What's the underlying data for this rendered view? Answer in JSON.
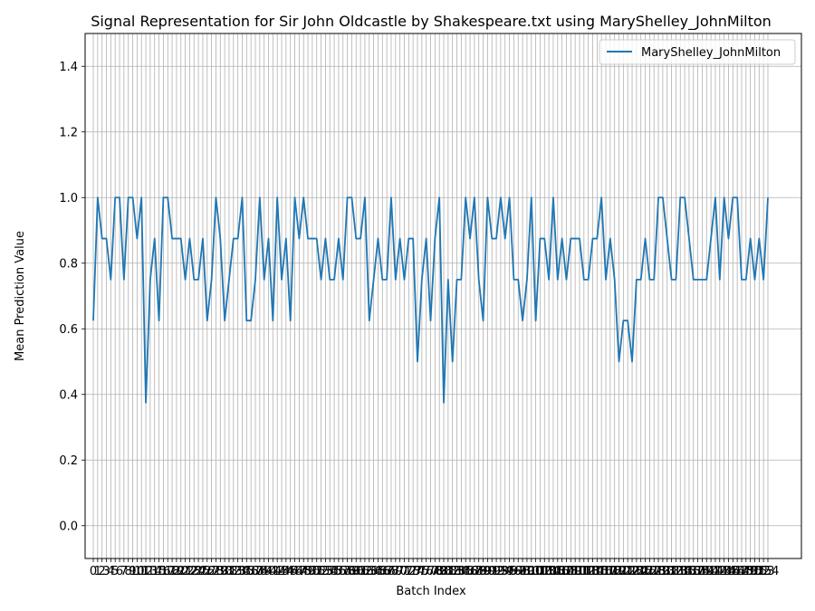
{
  "chart_data": {
    "type": "line",
    "title": "Signal Representation for Sir John Oldcastle by Shakespeare.txt using MaryShelley_JohnMilton",
    "xlabel": "Batch Index",
    "ylabel": "Mean Prediction Value",
    "ylim": [
      -0.1,
      1.5
    ],
    "y_ticks": [
      0.0,
      0.2,
      0.4,
      0.6,
      0.8,
      1.0,
      1.2,
      1.4
    ],
    "y_tick_labels": [
      "0.0",
      "0.2",
      "0.4",
      "0.6",
      "0.8",
      "1.0",
      "1.2",
      "1.4"
    ],
    "grid": true,
    "legend_position": "top-right",
    "series": [
      {
        "name": "MaryShelley_JohnMilton",
        "color": "#1f77b4",
        "values": [
          0.625,
          1.0,
          0.875,
          0.875,
          0.75,
          1.0,
          1.0,
          0.75,
          1.0,
          1.0,
          0.875,
          1.0,
          0.375,
          0.75,
          0.875,
          0.625,
          1.0,
          1.0,
          0.875,
          0.875,
          0.875,
          0.75,
          0.875,
          0.75,
          0.75,
          0.875,
          0.625,
          0.75,
          1.0,
          0.875,
          0.625,
          0.75,
          0.875,
          0.875,
          1.0,
          0.625,
          0.625,
          0.75,
          1.0,
          0.75,
          0.875,
          0.625,
          1.0,
          0.75,
          0.875,
          0.625,
          1.0,
          0.875,
          1.0,
          0.875,
          0.875,
          0.875,
          0.75,
          0.875,
          0.75,
          0.75,
          0.875,
          0.75,
          1.0,
          1.0,
          0.875,
          0.875,
          1.0,
          0.625,
          0.75,
          0.875,
          0.75,
          0.75,
          1.0,
          0.75,
          0.875,
          0.75,
          0.875,
          0.875,
          0.5,
          0.75,
          0.875,
          0.625,
          0.875,
          1.0,
          0.375,
          0.75,
          0.5,
          0.75,
          0.75,
          1.0,
          0.875,
          1.0,
          0.75,
          0.625,
          1.0,
          0.875,
          0.875,
          1.0,
          0.875,
          1.0,
          0.75,
          0.75,
          0.625,
          0.75,
          1.0,
          0.625,
          0.875,
          0.875,
          0.75,
          1.0,
          0.75,
          0.875,
          0.75,
          0.875,
          0.875,
          0.875,
          0.75,
          0.75,
          0.875,
          0.875,
          1.0,
          0.75,
          0.875,
          0.75,
          0.5,
          0.625,
          0.625,
          0.5,
          0.75,
          0.75,
          0.875,
          0.75,
          0.75,
          1.0,
          1.0,
          0.875,
          0.75,
          0.75,
          1.0,
          1.0,
          0.875,
          0.75,
          0.75,
          0.75,
          0.75,
          0.875,
          1.0,
          0.75,
          1.0,
          0.875,
          1.0,
          1.0,
          0.75,
          0.75,
          0.875,
          0.75,
          0.875,
          0.75,
          1.0
        ]
      }
    ]
  }
}
